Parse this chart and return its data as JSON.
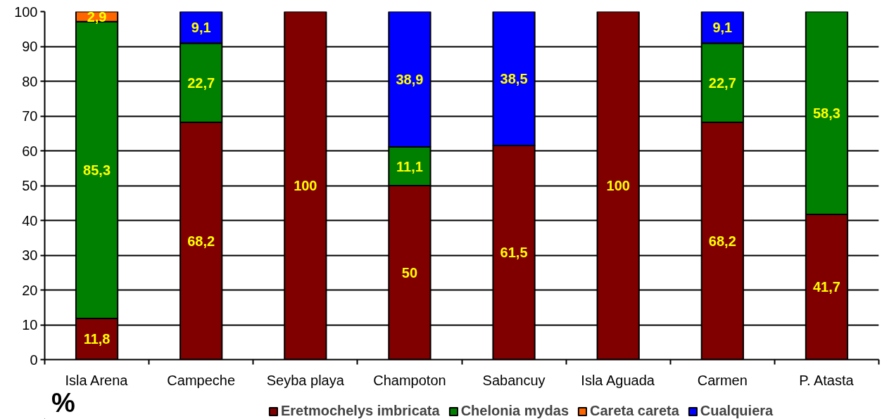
{
  "chart_data": {
    "type": "bar",
    "stacked": true,
    "annotations": [
      "%"
    ],
    "categories": [
      "Isla Arena",
      "Campeche",
      "Seyba playa",
      "Champoton",
      "Sabancuy",
      "Isla Aguada",
      "Carmen",
      "P. Atasta"
    ],
    "series": [
      {
        "name": "Eretmochelys imbricata",
        "color": "#800000",
        "values": [
          11.8,
          68.2,
          100,
          50,
          61.5,
          100,
          68.2,
          41.7
        ],
        "value_labels": [
          "11,8",
          "68,2",
          "100",
          "50",
          "61,5",
          "100",
          "68,2",
          "41,7"
        ]
      },
      {
        "name": "Chelonia mydas",
        "color": "#008000",
        "values": [
          85.3,
          22.7,
          null,
          11.1,
          null,
          null,
          22.7,
          58.3
        ],
        "value_labels": [
          "85,3",
          "22,7",
          null,
          "11,1",
          null,
          null,
          "22,7",
          "58,3"
        ]
      },
      {
        "name": "Careta careta",
        "color": "#ff6600",
        "values": [
          2.9,
          null,
          null,
          null,
          null,
          null,
          null,
          null
        ],
        "value_labels": [
          "2,9",
          null,
          null,
          null,
          null,
          null,
          null,
          null
        ]
      },
      {
        "name": "Cualquiera",
        "color": "#0000ff",
        "values": [
          null,
          9.1,
          null,
          38.9,
          38.5,
          null,
          9.1,
          null
        ],
        "value_labels": [
          null,
          "9,1",
          null,
          "38,9",
          "38,5",
          null,
          "9,1",
          null
        ]
      }
    ],
    "ylim": [
      0,
      100
    ],
    "yticks": [
      0,
      10,
      20,
      30,
      40,
      50,
      60,
      70,
      80,
      90,
      100
    ],
    "grid": "y",
    "legend": "bottom"
  }
}
